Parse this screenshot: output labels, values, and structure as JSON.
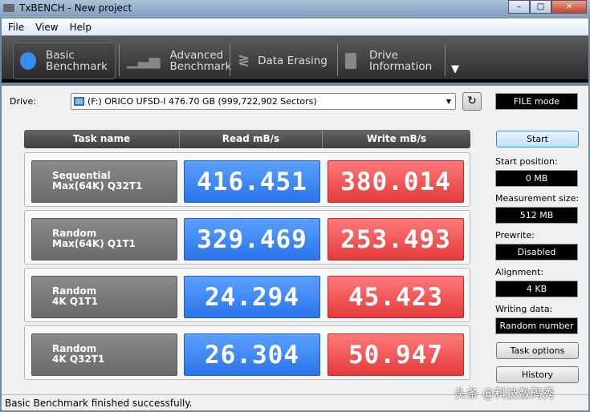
{
  "window": {
    "title": "TxBENCH - New project"
  },
  "menu": [
    "File",
    "View",
    "Help"
  ],
  "tabs": [
    {
      "line1": "Basic",
      "line2": "Benchmark",
      "icon": "stopwatch-icon"
    },
    {
      "line1": "Advanced",
      "line2": "Benchmark",
      "icon": "bar-chart-icon"
    },
    {
      "line1": "Data Erasing",
      "line2": "",
      "icon": "eraser-icon"
    },
    {
      "line1": "Drive",
      "line2": "Information",
      "icon": "drive-info-icon"
    }
  ],
  "drive": {
    "label": "Drive:",
    "value": "(F:) ORICO UFSD-I  476.70 GB (999,722,902 Sectors)"
  },
  "mode": "FILE mode",
  "table": {
    "headers": [
      "Task name",
      "Read mB/s",
      "Write mB/s"
    ],
    "rows": [
      {
        "name1": "Sequential",
        "name2": "Max(64K) Q32T1",
        "read": "416.451",
        "write": "380.014"
      },
      {
        "name1": "Random",
        "name2": "Max(64K) Q1T1",
        "read": "329.469",
        "write": "253.493"
      },
      {
        "name1": "Random",
        "name2": "4K Q1T1",
        "read": "24.294",
        "write": "45.423"
      },
      {
        "name1": "Random",
        "name2": "4K Q32T1",
        "read": "26.304",
        "write": "50.947"
      }
    ]
  },
  "side": {
    "start": "Start",
    "start_position_label": "Start position:",
    "start_position": "0 MB",
    "measurement_size_label": "Measurement size:",
    "measurement_size": "512 MB",
    "prewrite_label": "Prewrite:",
    "prewrite": "Disabled",
    "alignment_label": "Alignment:",
    "alignment": "4 KB",
    "writing_data_label": "Writing data:",
    "writing_data": "Random number",
    "task_options": "Task options",
    "history": "History"
  },
  "status": "Basic Benchmark finished successfully.",
  "watermark": "头条 @科技数码秀",
  "colors": {
    "read": "#2b74ea",
    "write": "#e53a3a"
  }
}
